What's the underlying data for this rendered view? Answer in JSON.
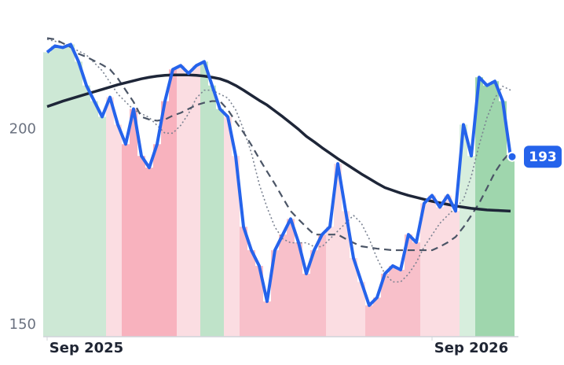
{
  "chart_data": {
    "type": "line",
    "categories": [
      null,
      null,
      null,
      null,
      null,
      "Sep 2025",
      null,
      null,
      null,
      null,
      null,
      null,
      null,
      null,
      null,
      null,
      null,
      null,
      null,
      null,
      null,
      null,
      null,
      null,
      null,
      null,
      null,
      null,
      null,
      null,
      null,
      null,
      null,
      null,
      null,
      null,
      null,
      null,
      null,
      null,
      null,
      null,
      null,
      null,
      null,
      null,
      null,
      null,
      null,
      null,
      null,
      null,
      null,
      null,
      "Sep 2026",
      null,
      null,
      null,
      null,
      null
    ],
    "ylim": [
      147,
      224
    ],
    "yticks": [
      150,
      200
    ],
    "band_colors": [
      "#cde8d5",
      "#cde8d5",
      "#cde8d5",
      "#cde8d5",
      "#cde8d5",
      "#cde8d5",
      "#cde8d5",
      "#cde8d5",
      "#fbdde2",
      "#fbdde2",
      "#f8b2be",
      "#f8b2be",
      "#f8b2be",
      "#f8b2be",
      "#f8b2be",
      "#f8b2be",
      "#f8b2be",
      "#fbdde2",
      "#fbdde2",
      "#fbdde2",
      "#bfe3c9",
      "#bfe3c9",
      "#bfe3c9",
      "#fbdde2",
      "#fbdde2",
      "#f8c0ca",
      "#f8c0ca",
      "#f8c0ca",
      "#f8c0ca",
      "#f8c0ca",
      "#f8c0ca",
      "#f8c0ca",
      "#f8c0ca",
      "#f8c0ca",
      "#f8c0ca",
      "#f8c0ca",
      "#fbdde2",
      "#fbdde2",
      "#fbdde2",
      "#fbdde2",
      "#fbdde2",
      "#f8c0ca",
      "#f8c0ca",
      "#f8c0ca",
      "#f8c0ca",
      "#f8c0ca",
      "#f8c0ca",
      "#f8c0ca",
      "#fbdde2",
      "#fbdde2",
      "#fbdde2",
      "#fbdde2",
      "#fbdde2",
      "#d7eedd",
      "#d7eedd",
      "#9fd6ad",
      "#9fd6ad",
      "#9fd6ad",
      "#9fd6ad",
      "#9fd6ad"
    ],
    "series": [
      {
        "color": "#2563eb",
        "style": "price",
        "values": [
          219.7,
          221.3,
          220.9,
          221.7,
          217.3,
          211.2,
          207.2,
          203.2,
          208.2,
          201.2,
          196.2,
          205.2,
          193.2,
          190.2,
          196.2,
          207.2,
          215.3,
          216.3,
          214.3,
          216.3,
          217.3,
          211.2,
          205.2,
          203.2,
          193.2,
          175.1,
          169.1,
          165.1,
          156,
          169.1,
          173.1,
          177.1,
          171.1,
          163.1,
          169.1,
          173.1,
          175.1,
          191.2,
          179.1,
          167.1,
          161,
          155,
          157,
          163.1,
          165.1,
          164.1,
          173.1,
          171.1,
          181.1,
          183.1,
          180.1,
          183.1,
          179.1,
          201.2,
          193.2,
          213.3,
          211.2,
          212.3,
          207.2,
          193
        ]
      },
      {
        "color": "#1e2638",
        "style": "thick",
        "values": [
          205.8,
          206.5,
          207.2,
          207.8,
          208.4,
          209,
          209.6,
          210.2,
          210.8,
          211.4,
          211.9,
          212.4,
          212.9,
          213.3,
          213.6,
          213.8,
          213.9,
          213.9,
          213.9,
          213.8,
          213.6,
          213.3,
          212.9,
          212.2,
          211.2,
          210,
          208.7,
          207.4,
          206.2,
          204.7,
          203.2,
          201.6,
          200,
          198.2,
          196.8,
          195.3,
          193.9,
          192.5,
          191.2,
          189.9,
          188.6,
          187.4,
          186.2,
          185.1,
          184.4,
          183.7,
          183.1,
          182.6,
          182.1,
          181.6,
          181.2,
          180.8,
          180.4,
          180.1,
          179.8,
          179.6,
          179.4,
          179.3,
          179.2,
          179.1
        ]
      },
      {
        "color": "#4b5566",
        "style": "dashed",
        "values": [
          223.3,
          223,
          222,
          221,
          219.3,
          218.5,
          217.5,
          216.5,
          215.3,
          213,
          210,
          207,
          203.2,
          202.5,
          202.2,
          202.5,
          203.5,
          204.2,
          205.2,
          206.2,
          206.8,
          207.2,
          207.2,
          205,
          202,
          199.2,
          196,
          192.5,
          189.2,
          186,
          182.5,
          179.1,
          177,
          175,
          173.1,
          173.1,
          173.1,
          173.1,
          172,
          171,
          170.1,
          169.8,
          169.5,
          169.3,
          169.1,
          169.1,
          169.1,
          169.1,
          169.1,
          169.1,
          170,
          171.1,
          172.5,
          175,
          178,
          181.1,
          185,
          189,
          192,
          194.2
        ]
      },
      {
        "color": "#7a8291",
        "style": "dotted",
        "values": [
          223,
          222.5,
          222,
          221,
          220,
          219,
          217,
          215,
          212,
          209,
          207,
          205,
          204,
          203,
          201,
          199,
          199,
          201,
          204,
          208,
          210,
          210,
          209,
          208,
          205,
          200,
          194,
          186,
          180,
          175,
          172,
          171,
          171,
          171,
          170,
          170,
          172,
          174,
          176,
          178,
          176,
          172,
          167,
          163,
          161,
          161,
          163,
          166,
          170,
          173,
          176,
          178,
          180,
          182,
          188,
          196,
          203,
          208,
          211,
          210
        ]
      }
    ]
  }
}
